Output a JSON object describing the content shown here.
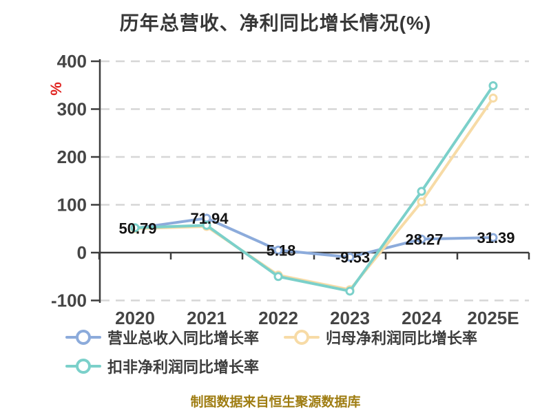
{
  "title": "历年总营收、净利同比增长情况(%)",
  "y_axis_unit": "%",
  "footer": "制图数据来自恒生聚源数据库",
  "colors": {
    "revenue": "#8cabdb",
    "net_profit": "#f7dba6",
    "non_gaap": "#7bd0ca",
    "axis": "#3c3c3c",
    "grid": "#d6d6d6",
    "title_text": "#373737",
    "data_label_text": "#141414",
    "unit_red": "#e0221f",
    "footer_text": "#9f7d12"
  },
  "chart_data": {
    "type": "line",
    "title": "历年总营收、净利同比增长情况(%)",
    "categories": [
      "2020",
      "2021",
      "2022",
      "2023",
      "2024",
      "2025E"
    ],
    "series": [
      {
        "name": "营业总收入同比增长率",
        "color_key": "revenue",
        "values": [
          50.79,
          71.94,
          5.18,
          -9.53,
          28.27,
          31.39
        ],
        "labels": [
          "50.79",
          "71.94",
          "5.18",
          "-9.53",
          "28.27",
          "31.39"
        ],
        "labels_visible": true
      },
      {
        "name": "归母净利润同比增长率",
        "color_key": "net_profit",
        "values": [
          50.3,
          54.6,
          -47.0,
          -77.5,
          106.0,
          323.0
        ],
        "labels_visible": false
      },
      {
        "name": "扣非净利润同比增长率",
        "color_key": "non_gaap",
        "values": [
          52.0,
          57.0,
          -50.0,
          -80.5,
          128.0,
          349.0
        ],
        "labels_visible": false
      }
    ],
    "ylabel": "%",
    "xlabel": "",
    "ylim": [
      -100,
      400
    ],
    "yticks": [
      400,
      300,
      200,
      100,
      0,
      -100
    ],
    "grid": "horizontal dashed",
    "legend_position": "bottom-left",
    "marker": "open-circle"
  },
  "legend": {
    "items": [
      {
        "label": "营业总收入同比增长率",
        "color_key": "revenue"
      },
      {
        "label": "归母净利润同比增长率",
        "color_key": "net_profit"
      },
      {
        "label": "扣非净利润同比增长率",
        "color_key": "non_gaap"
      }
    ]
  }
}
